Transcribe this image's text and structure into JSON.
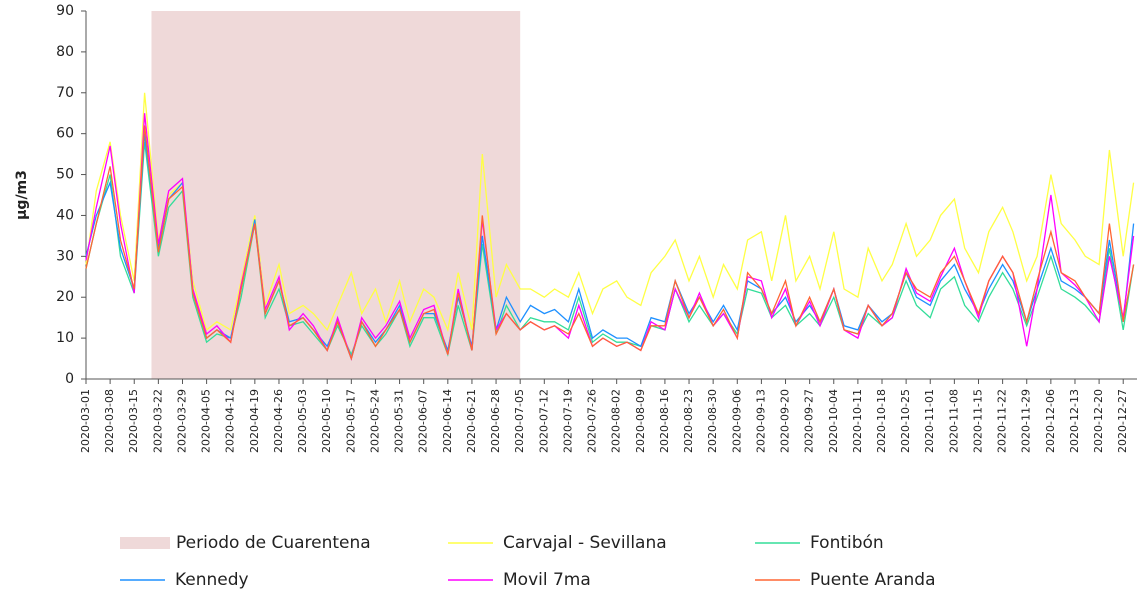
{
  "chart_data": {
    "type": "line",
    "y_label": "µg/m3",
    "shade": {
      "name": "Periodo de Cuarentena",
      "start": "2020-03-20",
      "end": "2020-07-05",
      "color": "#efd9d9"
    },
    "xlim": [
      "2020-03-01",
      "2020-12-31"
    ],
    "xticks": [
      "2020-03-01",
      "2020-03-08",
      "2020-03-15",
      "2020-03-22",
      "2020-03-29",
      "2020-04-05",
      "2020-04-12",
      "2020-04-19",
      "2020-04-26",
      "2020-05-03",
      "2020-05-10",
      "2020-05-17",
      "2020-05-24",
      "2020-05-31",
      "2020-06-07",
      "2020-06-14",
      "2020-06-21",
      "2020-06-28",
      "2020-07-05",
      "2020-07-12",
      "2020-07-19",
      "2020-07-26",
      "2020-08-02",
      "2020-08-09",
      "2020-08-16",
      "2020-08-23",
      "2020-08-30",
      "2020-09-06",
      "2020-09-13",
      "2020-09-20",
      "2020-09-27",
      "2020-10-04",
      "2020-10-11",
      "2020-10-18",
      "2020-10-25",
      "2020-11-01",
      "2020-11-08",
      "2020-11-15",
      "2020-11-22",
      "2020-11-29",
      "2020-12-06",
      "2020-12-13",
      "2020-12-20",
      "2020-12-27"
    ],
    "ylim": [
      0,
      90
    ],
    "yticks": [
      0,
      10,
      20,
      30,
      40,
      50,
      60,
      70,
      80,
      90
    ],
    "x": [
      "2020-03-01",
      "2020-03-04",
      "2020-03-08",
      "2020-03-11",
      "2020-03-15",
      "2020-03-18",
      "2020-03-22",
      "2020-03-25",
      "2020-03-29",
      "2020-04-01",
      "2020-04-05",
      "2020-04-08",
      "2020-04-12",
      "2020-04-15",
      "2020-04-19",
      "2020-04-22",
      "2020-04-26",
      "2020-04-29",
      "2020-05-03",
      "2020-05-06",
      "2020-05-10",
      "2020-05-13",
      "2020-05-17",
      "2020-05-20",
      "2020-05-24",
      "2020-05-27",
      "2020-05-31",
      "2020-06-03",
      "2020-06-07",
      "2020-06-10",
      "2020-06-14",
      "2020-06-17",
      "2020-06-21",
      "2020-06-24",
      "2020-06-28",
      "2020-07-01",
      "2020-07-05",
      "2020-07-08",
      "2020-07-12",
      "2020-07-15",
      "2020-07-19",
      "2020-07-22",
      "2020-07-26",
      "2020-07-29",
      "2020-08-02",
      "2020-08-05",
      "2020-08-09",
      "2020-08-12",
      "2020-08-16",
      "2020-08-19",
      "2020-08-23",
      "2020-08-26",
      "2020-08-30",
      "2020-09-02",
      "2020-09-06",
      "2020-09-09",
      "2020-09-13",
      "2020-09-16",
      "2020-09-20",
      "2020-09-23",
      "2020-09-27",
      "2020-09-30",
      "2020-10-04",
      "2020-10-07",
      "2020-10-11",
      "2020-10-14",
      "2020-10-18",
      "2020-10-21",
      "2020-10-25",
      "2020-10-28",
      "2020-11-01",
      "2020-11-04",
      "2020-11-08",
      "2020-11-11",
      "2020-11-15",
      "2020-11-18",
      "2020-11-22",
      "2020-11-25",
      "2020-11-29",
      "2020-12-02",
      "2020-12-06",
      "2020-12-09",
      "2020-12-13",
      "2020-12-16",
      "2020-12-20",
      "2020-12-23",
      "2020-12-27",
      "2020-12-30"
    ],
    "series": [
      {
        "name": "Carvajal - Sevillana",
        "color": "#ffff44",
        "values": [
          28,
          46,
          58,
          40,
          24,
          70,
          34,
          45,
          48,
          24,
          12,
          14,
          12,
          24,
          40,
          18,
          28,
          16,
          18,
          16,
          12,
          18,
          26,
          16,
          22,
          14,
          24,
          14,
          22,
          20,
          12,
          26,
          12,
          55,
          20,
          28,
          22,
          22,
          20,
          22,
          20,
          26,
          16,
          22,
          24,
          20,
          18,
          26,
          30,
          34,
          24,
          30,
          20,
          28,
          22,
          34,
          36,
          24,
          40,
          24,
          30,
          22,
          36,
          22,
          20,
          32,
          24,
          28,
          38,
          30,
          34,
          40,
          44,
          32,
          26,
          36,
          42,
          36,
          24,
          30,
          50,
          38,
          34,
          30,
          28,
          56,
          30,
          48
        ]
      },
      {
        "name": "Fontibón",
        "color": "#33dd99",
        "values": [
          27,
          38,
          50,
          30,
          21,
          58,
          30,
          42,
          46,
          20,
          9,
          11,
          10,
          20,
          38,
          15,
          22,
          13,
          14,
          11,
          7,
          13,
          6,
          13,
          8,
          11,
          17,
          8,
          15,
          15,
          6,
          18,
          7,
          33,
          11,
          18,
          12,
          15,
          14,
          14,
          12,
          20,
          9,
          11,
          9,
          9,
          8,
          13,
          12,
          22,
          14,
          18,
          13,
          16,
          11,
          22,
          21,
          15,
          18,
          13,
          16,
          13,
          20,
          12,
          11,
          16,
          13,
          15,
          24,
          18,
          15,
          22,
          25,
          18,
          14,
          20,
          26,
          22,
          13,
          20,
          30,
          22,
          20,
          18,
          14,
          32,
          12,
          28
        ]
      },
      {
        "name": "Kennedy",
        "color": "#1e90ff",
        "values": [
          30,
          40,
          48,
          32,
          22,
          60,
          32,
          44,
          48,
          22,
          10,
          12,
          10,
          22,
          39,
          16,
          24,
          14,
          15,
          12,
          8,
          14,
          5,
          14,
          9,
          12,
          18,
          9,
          16,
          16,
          7,
          20,
          8,
          35,
          12,
          20,
          14,
          18,
          16,
          17,
          14,
          22,
          10,
          12,
          10,
          10,
          8,
          15,
          14,
          24,
          16,
          20,
          14,
          18,
          12,
          24,
          22,
          16,
          20,
          14,
          18,
          14,
          22,
          13,
          12,
          18,
          14,
          16,
          26,
          20,
          18,
          24,
          28,
          22,
          16,
          22,
          28,
          24,
          14,
          22,
          32,
          24,
          22,
          20,
          16,
          34,
          14,
          38
        ]
      },
      {
        "name": "Movil 7ma",
        "color": "#ff00ff",
        "values": [
          29,
          42,
          57,
          38,
          21,
          65,
          33,
          46,
          49,
          22,
          11,
          13,
          9,
          23,
          38,
          17,
          25,
          12,
          16,
          13,
          7,
          15,
          5,
          15,
          10,
          13,
          19,
          10,
          17,
          18,
          6,
          22,
          7,
          39,
          12,
          16,
          12,
          14,
          12,
          13,
          10,
          18,
          8,
          10,
          8,
          9,
          7,
          14,
          12,
          22,
          15,
          21,
          13,
          16,
          10,
          25,
          24,
          15,
          22,
          13,
          19,
          13,
          22,
          12,
          10,
          18,
          13,
          15,
          27,
          21,
          19,
          25,
          32,
          24,
          15,
          24,
          30,
          26,
          8,
          22,
          45,
          26,
          23,
          20,
          14,
          30,
          15,
          35
        ]
      },
      {
        "name": "Puente Aranda",
        "color": "#ff6633",
        "values": [
          27,
          38,
          52,
          34,
          22,
          62,
          31,
          44,
          47,
          21,
          10,
          12,
          9,
          22,
          38,
          16,
          24,
          13,
          15,
          12,
          7,
          14,
          5,
          14,
          8,
          12,
          17,
          9,
          16,
          17,
          6,
          21,
          7,
          40,
          11,
          16,
          12,
          14,
          12,
          13,
          11,
          16,
          8,
          10,
          8,
          9,
          7,
          13,
          13,
          24,
          15,
          20,
          13,
          17,
          10,
          26,
          22,
          16,
          24,
          13,
          20,
          14,
          22,
          12,
          11,
          18,
          13,
          16,
          26,
          22,
          20,
          26,
          30,
          24,
          16,
          24,
          30,
          26,
          14,
          24,
          36,
          26,
          24,
          20,
          16,
          38,
          14,
          28
        ]
      }
    ]
  }
}
